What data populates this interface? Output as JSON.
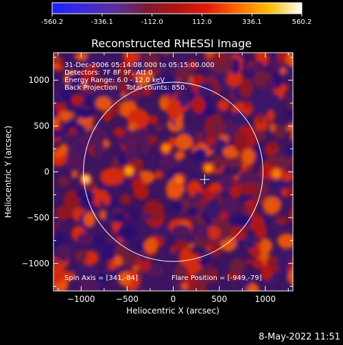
{
  "colorbar": {
    "ticks": [
      "-560.2",
      "-336.1",
      "-112.0",
      "112.0",
      "336.1",
      "560.2"
    ],
    "min": -560.2,
    "max": 560.2,
    "colors": [
      "#1c22ff",
      "#3a2bd8",
      "#5a2e9e",
      "#7a1a3a",
      "#b3140f",
      "#e51a0a",
      "#ff6f00",
      "#ffc000",
      "#ffffff"
    ]
  },
  "plot": {
    "title": "Reconstructed RHESSI Image",
    "xlabel": "Heliocentric X (arcsec)",
    "ylabel": "Heliocentric Y (arcsec)",
    "xlim": [
      -1300,
      1300
    ],
    "ylim": [
      -1300,
      1300
    ],
    "xticks": [
      -1000,
      -500,
      0,
      500,
      1000
    ],
    "yticks": [
      -1000,
      -500,
      0,
      500,
      1000
    ],
    "info_lines": [
      "31-Dec-2006 05:14:08.000 to 05:15:00.000",
      "Detectors: 7F 8F 9F, Att 0",
      "Energy Range: 6.0 - 12.0 keV",
      "Back Projection    Total counts: 850."
    ],
    "spin_axis": "Spin Axis = [341,-84]",
    "flare_position": "Flare Position = [-949,-79]",
    "solar_disk_radius": 975,
    "marker_position": [
      341,
      -84
    ]
  },
  "timestamp": "8-May-2022 11:51"
}
